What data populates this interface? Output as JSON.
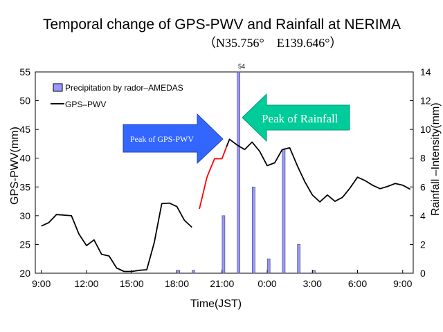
{
  "chart_data": {
    "type": "bar+line",
    "title": "Temporal change of  GPS-PWV and Rainfall at NERIMA",
    "subtitle": "（N35.756°　E139.646°）",
    "xlabel": "Time(JST)",
    "ylabel_left": "GPS-PWV(mm)",
    "ylabel_right": "Rainfall –Intensity(mm)",
    "xlim": [
      8.6,
      33.7
    ],
    "ylim_left": [
      20,
      55
    ],
    "ylim_right": [
      0,
      14
    ],
    "x_ticks": [
      9,
      12,
      15,
      18,
      21,
      24,
      27,
      30,
      33
    ],
    "x_tick_labels": [
      "9:00",
      "12:00",
      "15:00",
      "18:00",
      "21:00",
      "0:00",
      "3:00",
      "6:00",
      "9:00"
    ],
    "y_left_ticks": [
      20,
      25,
      30,
      35,
      40,
      45,
      50,
      55
    ],
    "y_right_ticks": [
      0,
      2,
      4,
      6,
      8,
      10,
      12,
      14
    ],
    "grid": false,
    "legend": {
      "position": "top-left",
      "entries": [
        "Precipitation by rador–AMEDAS",
        "GPS–PWV"
      ]
    },
    "bar_series": {
      "name": "Precipitation by rador–AMEDAS",
      "color": "#9999ff",
      "x": [
        18.1,
        19.1,
        21.1,
        22.1,
        23.1,
        24.1,
        25.1,
        26.1,
        27.1
      ],
      "values": [
        0.2,
        0.2,
        4.0,
        14.0,
        6.0,
        1.0,
        8.6,
        2.0,
        0.2
      ],
      "peak_label": "54"
    },
    "line_series": {
      "name": "GPS–PWV",
      "color": "#000000",
      "highlight_color": "#ff0000",
      "highlight_range": [
        19.1,
        21.3
      ],
      "x": [
        9.0,
        9.5,
        10.0,
        10.5,
        11.0,
        11.5,
        12.0,
        12.5,
        13.0,
        13.5,
        14.0,
        14.5,
        15.0,
        15.5,
        16.0,
        16.5,
        17.0,
        17.5,
        18.0,
        18.5,
        19.0,
        19.5,
        20.0,
        20.5,
        21.0,
        21.3,
        21.5,
        22.0,
        22.5,
        23.0,
        23.5,
        24.0,
        24.5,
        25.0,
        25.5,
        26.0,
        26.5,
        27.0,
        27.5,
        28.0,
        28.5,
        29.0,
        29.5,
        30.0,
        30.5,
        31.0,
        31.5,
        32.0,
        32.5,
        33.0,
        33.5
      ],
      "y": [
        28.2,
        28.8,
        30.2,
        30.1,
        30.0,
        26.8,
        24.8,
        25.8,
        23.3,
        23.0,
        20.9,
        20.3,
        20.3,
        20.5,
        20.6,
        25.3,
        32.1,
        32.2,
        31.6,
        29.2,
        28.0,
        31.2,
        36.7,
        39.9,
        39.9,
        42.0,
        43.3,
        42.3,
        41.5,
        42.8,
        41.2,
        38.7,
        39.2,
        41.5,
        41.8,
        38.7,
        35.9,
        33.6,
        32.4,
        33.6,
        32.5,
        33.2,
        34.8,
        36.7,
        36.1,
        35.3,
        34.7,
        35.1,
        35.6,
        35.3,
        34.6
      ]
    },
    "annotations": [
      {
        "text": "Peak of GPS-PWV",
        "direction": "right",
        "color": "#3366ff"
      },
      {
        "text": "Peak of Rainfall",
        "direction": "left",
        "color": "#00cc99"
      }
    ]
  }
}
